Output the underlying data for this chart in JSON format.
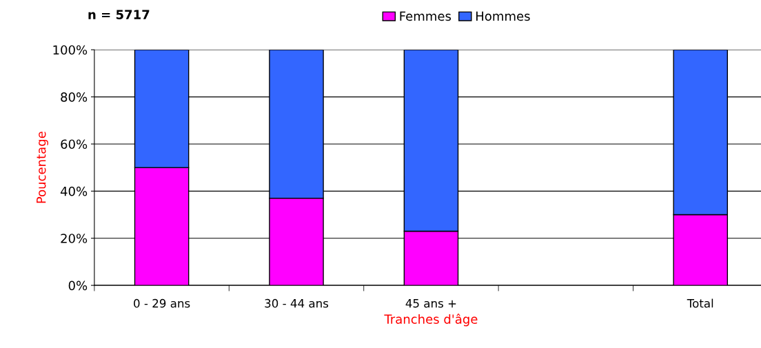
{
  "chart_data": {
    "type": "bar",
    "stacked": true,
    "categories": [
      "0 - 29 ans",
      "30 - 44 ans",
      "45 ans +",
      null,
      "Total"
    ],
    "series": [
      {
        "name": "Femmes",
        "color": "#ff00ff",
        "values": [
          50,
          37,
          23,
          null,
          30
        ]
      },
      {
        "name": "Hommes",
        "color": "#3366ff",
        "values": [
          50,
          63,
          77,
          null,
          70
        ]
      }
    ],
    "xlabel": "Tranches d'âge",
    "ylabel": "Poucentage",
    "annotations": [
      "n = 5717"
    ],
    "ylim": [
      0,
      100
    ],
    "yticks": [
      {
        "value": 0,
        "label": "0%"
      },
      {
        "value": 20,
        "label": "20%"
      },
      {
        "value": 40,
        "label": "40%"
      },
      {
        "value": 60,
        "label": "60%"
      },
      {
        "value": 80,
        "label": "80%"
      },
      {
        "value": 100,
        "label": "100%"
      }
    ],
    "grid": "y",
    "legend": "top"
  }
}
